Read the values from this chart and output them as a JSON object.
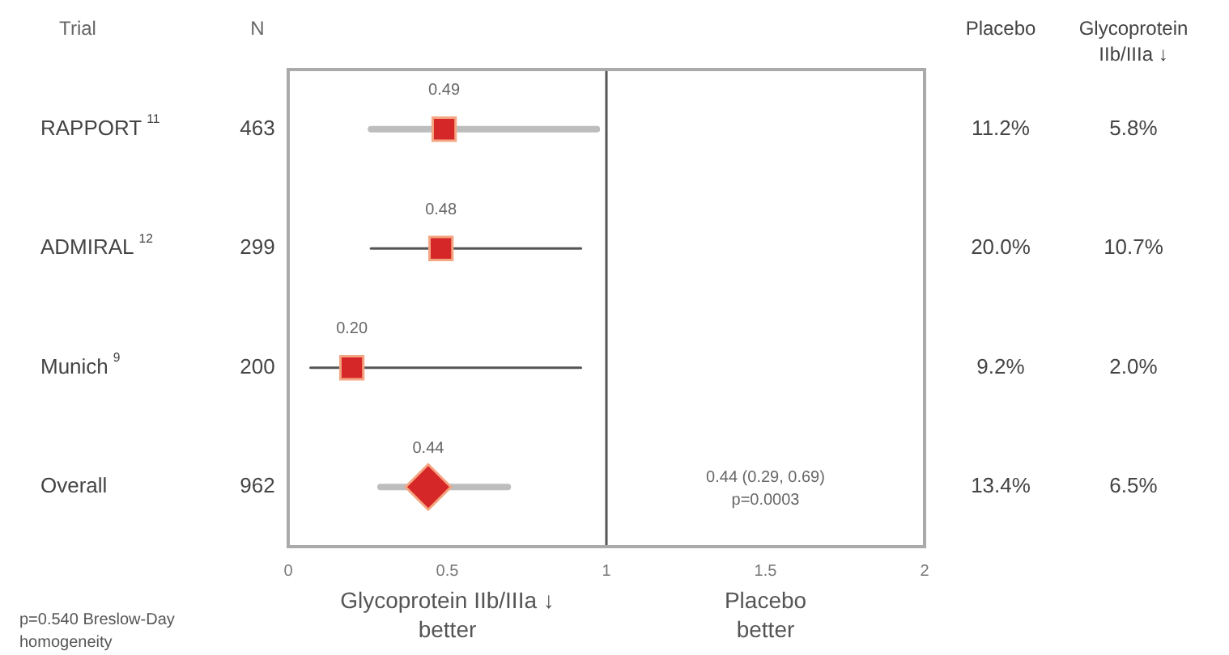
{
  "chart_data": {
    "type": "scatter",
    "orientation": "horizontal",
    "ylabel": "Trial",
    "categories": [
      "RAPPORT$^{11}$",
      "ADMIRAL$^{12}$",
      "Munich$^{9}$",
      "Overall"
    ],
    "series": [
      {
        "color": "#d62728",
        "marker": "square",
        "values": [
          0.49,
          0.48,
          0.2,
          null
        ],
        "value_labels": [
          "0.49",
          "0.48",
          "0.20",
          null
        ],
        "errors": [
          [
            0.26,
            0.97
          ],
          [
            0.26,
            0.92
          ],
          [
            0.07,
            0.92
          ],
          null
        ]
      },
      {
        "color": "#d62728",
        "marker": "diamond",
        "values": [
          null,
          null,
          null,
          0.44
        ],
        "value_labels": [
          null,
          null,
          null,
          "0.44"
        ],
        "errors": [
          null,
          null,
          null,
          [
            0.29,
            0.69
          ]
        ]
      }
    ],
    "xlim": [
      0,
      2
    ],
    "xticks": [
      0,
      0.5,
      1,
      1.5,
      2
    ],
    "grid": false,
    "legend": false,
    "ref_lines": [
      {
        "axis": "x",
        "value": 1,
        "color": "#555555"
      }
    ],
    "annotations": [
      "N",
      "Placebo",
      "Glycoprotein\nIIb/IIIa ↓",
      "463",
      "11.2%",
      "5.8%",
      "299",
      "20.0%",
      "10.7%",
      "200",
      "9.2%",
      "2.0%",
      "962",
      "13.4%",
      "6.5%",
      "0.44 (0.29, 0.69)\np=0.0003",
      "Glycoprotein IIb/IIIa ↓\nbetter",
      "Placebo\nbetter",
      "p=0.540 Breslow-Day\nhomogeneity"
    ]
  }
}
